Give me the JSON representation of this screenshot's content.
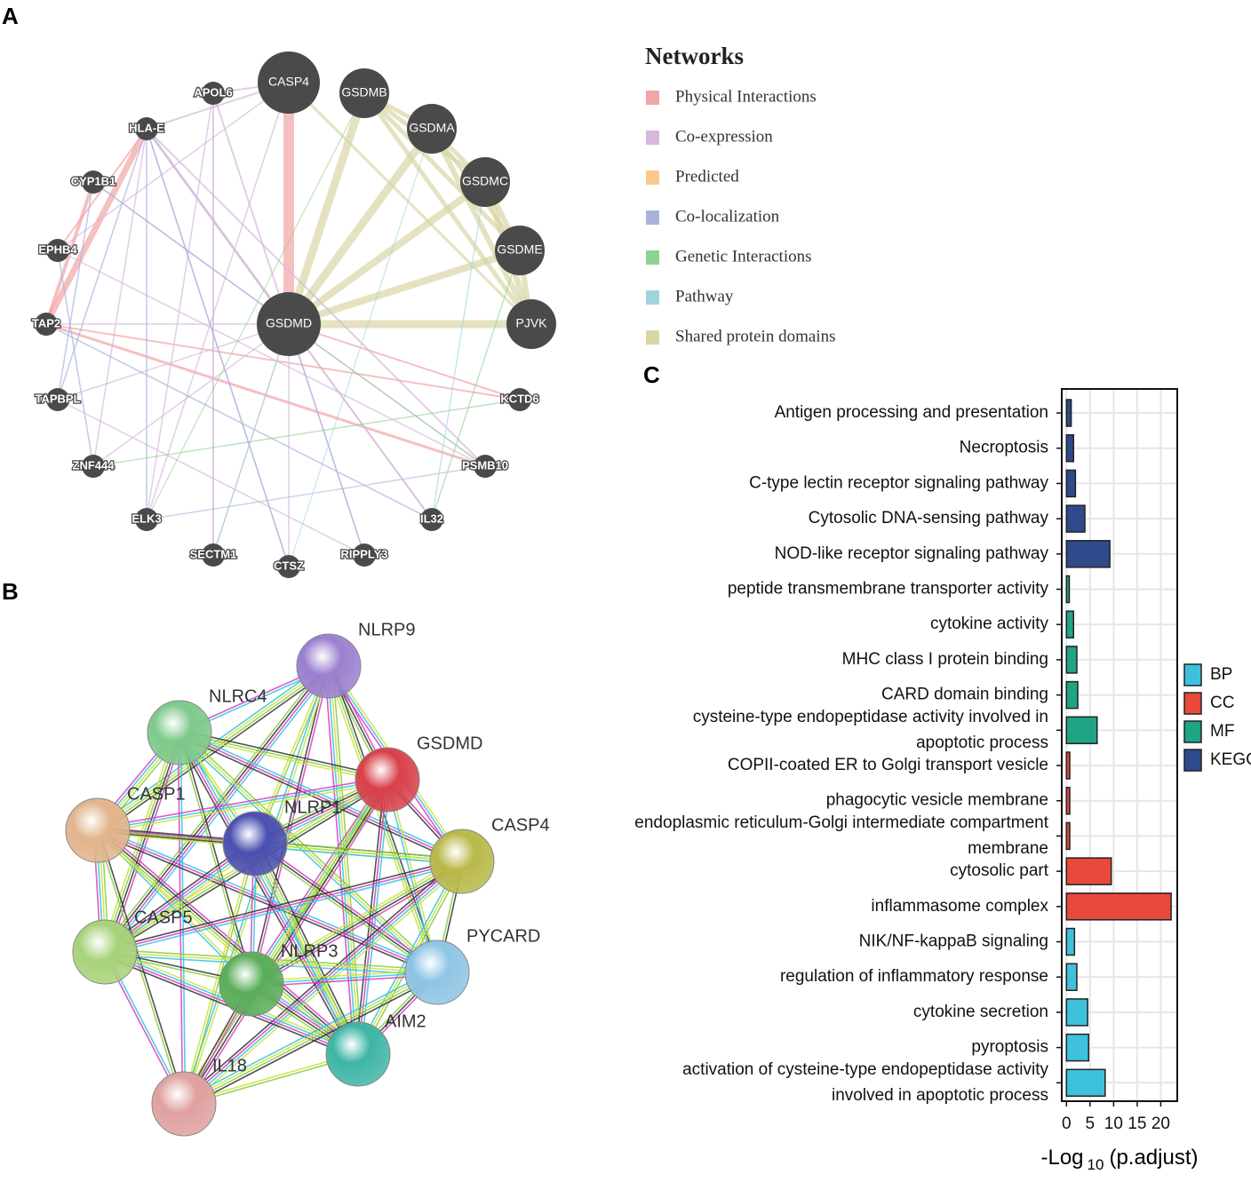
{
  "panel_labels": [
    "A",
    "B",
    "C"
  ],
  "network_a": {
    "nodes": [
      "CASP4",
      "GSDMB",
      "GSDMA",
      "GSDMC",
      "GSDME",
      "PJVK",
      "GSDMD",
      "APOL6",
      "HLA-E",
      "CYP1B1",
      "EPHB4",
      "TAP2",
      "TAPBPL",
      "ZNF444",
      "ELK3",
      "SECTM1",
      "CTSZ",
      "RIPPLY3",
      "IL32",
      "PSMB10",
      "KCTD6"
    ],
    "legend_title": "Networks",
    "legend": [
      {
        "label": "Physical Interactions",
        "color": "#f2a5a5"
      },
      {
        "label": "Co-expression",
        "color": "#d5b8dd"
      },
      {
        "label": "Predicted",
        "color": "#f9c98a"
      },
      {
        "label": "Co-localization",
        "color": "#a7b3dd"
      },
      {
        "label": "Genetic Interactions",
        "color": "#8fd18f"
      },
      {
        "label": "Pathway",
        "color": "#9ed5dd"
      },
      {
        "label": "Shared protein domains",
        "color": "#d8d6a5"
      }
    ]
  },
  "network_b": {
    "nodes": [
      {
        "name": "NLRP9",
        "color": "#9b7fcf"
      },
      {
        "name": "NLRC4",
        "color": "#7dc98a"
      },
      {
        "name": "GSDMD",
        "color": "#d9404a"
      },
      {
        "name": "CASP1",
        "color": "#e2b48c"
      },
      {
        "name": "NLRP1",
        "color": "#4b4fb0"
      },
      {
        "name": "CASP4",
        "color": "#b9b84a"
      },
      {
        "name": "CASP5",
        "color": "#a8d27a"
      },
      {
        "name": "NLRP3",
        "color": "#5aad5a"
      },
      {
        "name": "PYCARD",
        "color": "#8ec4e4"
      },
      {
        "name": "AIM2",
        "color": "#3eb5a5"
      },
      {
        "name": "IL18",
        "color": "#e0a0a0"
      }
    ]
  },
  "chart_data": {
    "type": "bar",
    "orientation": "horizontal",
    "categories": [
      "Antigen processing and presentation",
      "Necroptosis",
      "C-type lectin receptor signaling pathway",
      "Cytosolic DNA-sensing pathway",
      "NOD-like receptor signaling pathway",
      "peptide transmembrane transporter activity",
      "cytokine activity",
      "MHC class I protein binding",
      "CARD domain binding",
      "cysteine-type endopeptidase activity involved in\napoptotic process",
      "COPII-coated ER to Golgi transport vesicle",
      "phagocytic vesicle membrane",
      "endoplasmic reticulum-Golgi intermediate compartment\nmembrane",
      "cytosolic part",
      "inflammasome complex",
      "NIK/NF-kappaB signaling",
      "regulation of inflammatory response",
      "cytokine secretion",
      "pyroptosis",
      "activation of cysteine-type endopeptidase activity\ninvolved in apoptotic process"
    ],
    "series": [
      {
        "name": "BP",
        "color": "#3ec1dd",
        "values": [
          null,
          null,
          null,
          null,
          null,
          null,
          null,
          null,
          null,
          null,
          null,
          null,
          null,
          null,
          null,
          1.7,
          2.2,
          4.5,
          4.7,
          8.2
        ]
      },
      {
        "name": "CC",
        "color": "#e8493a",
        "values": [
          null,
          null,
          null,
          null,
          null,
          null,
          null,
          null,
          null,
          null,
          0.7,
          0.7,
          0.7,
          9.5,
          22.2,
          null,
          null,
          null,
          null,
          null
        ]
      },
      {
        "name": "MF",
        "color": "#1fa585",
        "values": [
          null,
          null,
          null,
          null,
          null,
          0.6,
          1.5,
          2.2,
          2.4,
          6.5,
          null,
          null,
          null,
          null,
          null,
          null,
          null,
          null,
          null,
          null
        ]
      },
      {
        "name": "KEGG",
        "color": "#2e4a8a",
        "values": [
          1.0,
          1.5,
          1.9,
          3.9,
          9.2,
          null,
          null,
          null,
          null,
          null,
          null,
          null,
          null,
          null,
          null,
          null,
          null,
          null,
          null,
          null
        ]
      }
    ],
    "xlim": [
      -1,
      23.5
    ],
    "xticks": [
      0,
      5,
      10,
      15,
      20
    ],
    "xlabel": {
      "main": "-Log",
      "sub": "10",
      "tail": "(p.adjust)"
    },
    "grid": true
  }
}
